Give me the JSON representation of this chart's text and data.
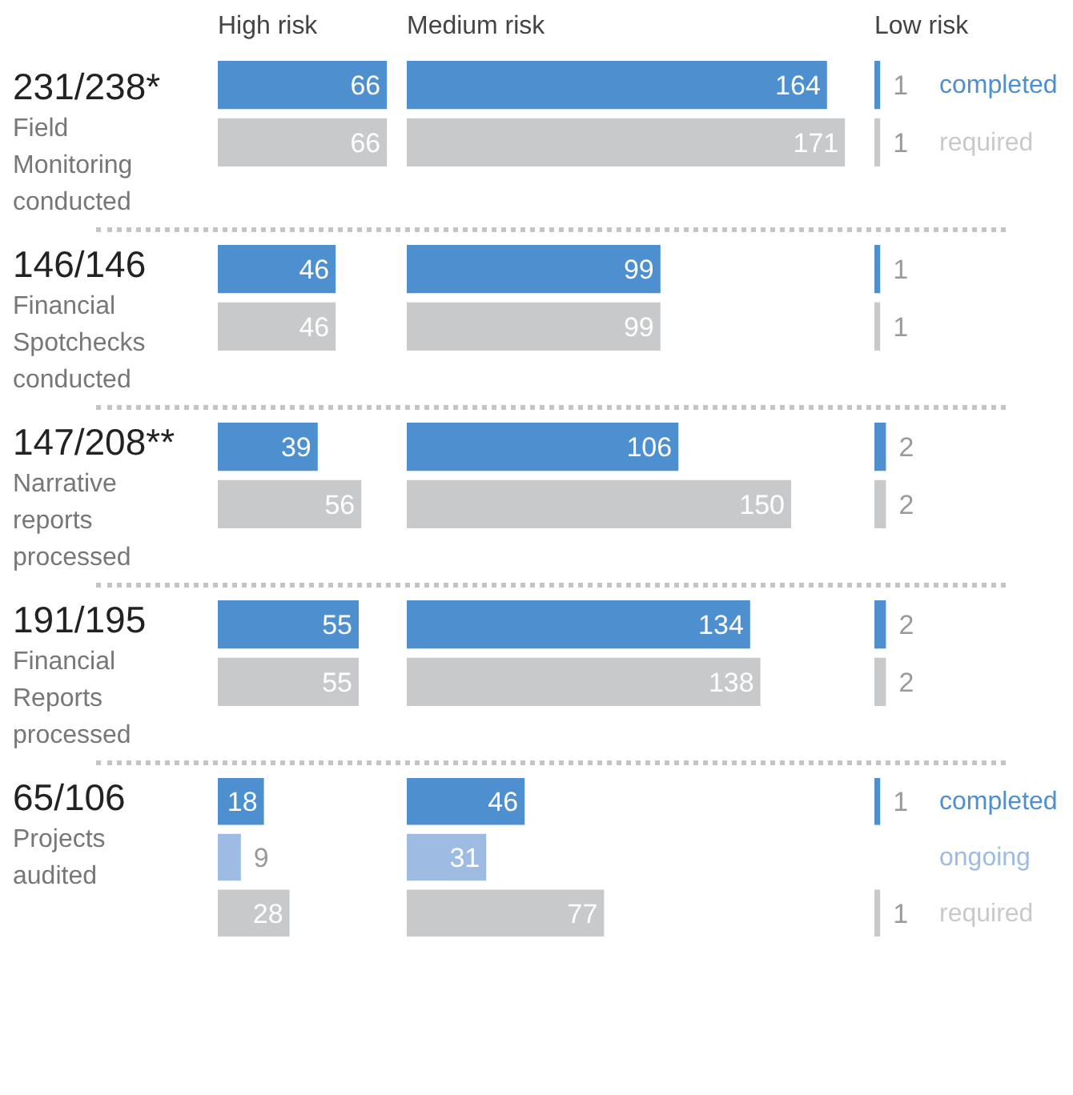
{
  "chart_data": [
    {
      "type": "other",
      "title": "231/238*",
      "subtitle": "Field Monitoring conducted"
    },
    {
      "type": "bar",
      "orientation": "horizontal",
      "data_labels": true,
      "title": "High risk",
      "categories": [
        null,
        null
      ],
      "values": [
        66,
        66
      ],
      "colors": [
        "#4e8fcf",
        "#c8c9cb"
      ]
    },
    {
      "type": "bar",
      "orientation": "horizontal",
      "data_labels": true,
      "title": "Medium risk",
      "categories": [
        null,
        null
      ],
      "values": [
        164,
        171
      ],
      "colors": [
        "#4e8fcf",
        "#c8c9cb"
      ]
    },
    {
      "type": "bar",
      "orientation": "horizontal",
      "data_labels": true,
      "title": "Low risk",
      "categories": [
        "completed",
        "required"
      ],
      "values": [
        1,
        1
      ],
      "colors": [
        "#4e8fcf",
        "#c8c9cb"
      ]
    },
    {
      "type": "other",
      "title": "146/146",
      "subtitle": "Financial Spotchecks conducted"
    },
    {
      "type": "bar",
      "orientation": "horizontal",
      "data_labels": true,
      "categories": [
        null,
        null
      ],
      "values": [
        46,
        46
      ],
      "colors": [
        "#4e8fcf",
        "#c8c9cb"
      ]
    },
    {
      "type": "bar",
      "orientation": "horizontal",
      "data_labels": true,
      "categories": [
        null,
        null
      ],
      "values": [
        99,
        99
      ],
      "colors": [
        "#4e8fcf",
        "#c8c9cb"
      ]
    },
    {
      "type": "bar",
      "orientation": "horizontal",
      "data_labels": true,
      "categories": [
        null,
        null
      ],
      "values": [
        1,
        1
      ],
      "colors": [
        "#4e8fcf",
        "#c8c9cb"
      ]
    },
    {
      "type": "other",
      "title": "147/208**",
      "subtitle": "Narrative reports processed"
    },
    {
      "type": "bar",
      "orientation": "horizontal",
      "data_labels": true,
      "categories": [
        null,
        null
      ],
      "values": [
        39,
        56
      ],
      "colors": [
        "#4e8fcf",
        "#c8c9cb"
      ]
    },
    {
      "type": "bar",
      "orientation": "horizontal",
      "data_labels": true,
      "categories": [
        null,
        null
      ],
      "values": [
        106,
        150
      ],
      "colors": [
        "#4e8fcf",
        "#c8c9cb"
      ]
    },
    {
      "type": "bar",
      "orientation": "horizontal",
      "data_labels": true,
      "categories": [
        null,
        null
      ],
      "values": [
        2,
        2
      ],
      "colors": [
        "#4e8fcf",
        "#c8c9cb"
      ]
    },
    {
      "type": "other",
      "title": "191/195",
      "subtitle": "Financial Reports processed"
    },
    {
      "type": "bar",
      "orientation": "horizontal",
      "data_labels": true,
      "categories": [
        null,
        null
      ],
      "values": [
        55,
        55
      ],
      "colors": [
        "#4e8fcf",
        "#c8c9cb"
      ]
    },
    {
      "type": "bar",
      "orientation": "horizontal",
      "data_labels": true,
      "categories": [
        null,
        null
      ],
      "values": [
        134,
        138
      ],
      "colors": [
        "#4e8fcf",
        "#c8c9cb"
      ]
    },
    {
      "type": "bar",
      "orientation": "horizontal",
      "data_labels": true,
      "categories": [
        null,
        null
      ],
      "values": [
        2,
        2
      ],
      "colors": [
        "#4e8fcf",
        "#c8c9cb"
      ]
    },
    {
      "type": "other",
      "title": "65/106",
      "subtitle": "Projects audited"
    },
    {
      "type": "bar",
      "orientation": "horizontal",
      "data_labels": true,
      "categories": [
        null,
        null,
        null
      ],
      "values": [
        18,
        9,
        28
      ],
      "colors": [
        "#4e8fcf",
        "#9dbbe3",
        "#c8c9cb"
      ]
    },
    {
      "type": "bar",
      "orientation": "horizontal",
      "data_labels": true,
      "categories": [
        null,
        null,
        null
      ],
      "values": [
        46,
        31,
        77
      ],
      "colors": [
        "#4e8fcf",
        "#9dbbe3",
        "#c8c9cb"
      ]
    },
    {
      "type": "bar",
      "orientation": "horizontal",
      "data_labels": true,
      "categories": [
        "completed",
        "ongoing",
        "required"
      ],
      "values": [
        1,
        null,
        1
      ],
      "colors": [
        "#4e8fcf",
        "#9dbbe3",
        "#c8c9cb"
      ]
    }
  ]
}
